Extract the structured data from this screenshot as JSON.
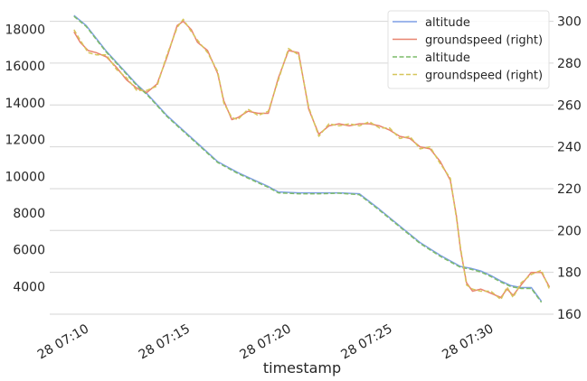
{
  "chart_data": {
    "type": "line",
    "title": "",
    "xlabel": "timestamp",
    "ylabel": "",
    "x_tick_labels": [
      "28 07:10",
      "28 07:15",
      "28 07:20",
      "28 07:25",
      "28 07:30"
    ],
    "x_tick_minutes": [
      10,
      15,
      20,
      25,
      30
    ],
    "xlim_minutes": [
      8.7,
      33.6
    ],
    "y_left": {
      "ticks": [
        4000,
        6000,
        8000,
        10000,
        12000,
        14000,
        16000,
        18000
      ],
      "lim": [
        2500,
        19000
      ]
    },
    "y_right": {
      "ticks": [
        160,
        180,
        200,
        220,
        240,
        260,
        280,
        300
      ],
      "lim": [
        160,
        305
      ]
    },
    "grid": true,
    "legend_position": "top-right",
    "series": [
      {
        "name": "altitude",
        "axis": "left",
        "style": "solid",
        "color": "#7f9fe6",
        "x": [
          9.9,
          10.5,
          11.0,
          11.5,
          12.0,
          12.5,
          13.0,
          13.5,
          14.0,
          14.5,
          15.0,
          15.5,
          16.0,
          16.5,
          17.0,
          17.5,
          18.0,
          18.5,
          19.0,
          19.5,
          20.0,
          21.0,
          22.0,
          23.0,
          24.0,
          25.0,
          26.0,
          27.0,
          28.0,
          29.0,
          29.5,
          30.0,
          30.5,
          31.0,
          31.5,
          32.0,
          32.5,
          33.0
        ],
        "values": [
          18750,
          18200,
          17500,
          16800,
          16200,
          15600,
          15000,
          14500,
          13900,
          13300,
          12800,
          12300,
          11800,
          11300,
          10800,
          10500,
          10200,
          9950,
          9700,
          9450,
          9150,
          9100,
          9100,
          9100,
          9050,
          8200,
          7300,
          6400,
          5700,
          5100,
          5000,
          4850,
          4600,
          4300,
          4050,
          3950,
          3950,
          3200
        ]
      },
      {
        "name": "groundspeed (right)",
        "axis": "right",
        "style": "solid",
        "color": "#e8836f",
        "x": [
          9.9,
          10.2,
          10.6,
          11.0,
          11.5,
          12.0,
          12.5,
          13.0,
          13.5,
          14.0,
          14.5,
          15.0,
          15.3,
          15.7,
          16.0,
          16.5,
          17.0,
          17.3,
          17.7,
          18.0,
          18.5,
          19.0,
          19.5,
          20.0,
          20.5,
          21.0,
          21.5,
          22.0,
          22.5,
          23.0,
          23.5,
          24.0,
          24.5,
          25.0,
          25.5,
          26.0,
          26.5,
          27.0,
          27.5,
          28.0,
          28.5,
          28.8,
          29.0,
          29.3,
          29.6,
          30.0,
          30.5,
          31.0,
          31.3,
          31.6,
          32.0,
          32.5,
          33.0,
          33.4
        ],
        "values": [
          295,
          290,
          286,
          285,
          283,
          278,
          272,
          268,
          266,
          270,
          283,
          298,
          300,
          296,
          290,
          286,
          275,
          262,
          253,
          254,
          257,
          256,
          256,
          273,
          286,
          285,
          258,
          246,
          250,
          251,
          250,
          251,
          251,
          250,
          248,
          245,
          244,
          240,
          239,
          233,
          224,
          207,
          191,
          175,
          171,
          172,
          170,
          168,
          172,
          169,
          174,
          180,
          180,
          173
        ]
      },
      {
        "name": "altitude",
        "axis": "left",
        "style": "dashed",
        "color": "#7cbb68",
        "x": [
          9.9,
          10.5,
          11.0,
          11.5,
          12.0,
          12.5,
          13.0,
          13.5,
          14.0,
          14.5,
          15.0,
          15.5,
          16.0,
          16.5,
          17.0,
          17.5,
          18.0,
          18.5,
          19.0,
          19.5,
          20.0,
          21.0,
          22.0,
          23.0,
          24.0,
          25.0,
          26.0,
          27.0,
          28.0,
          29.0,
          29.5,
          30.0,
          30.5,
          31.0,
          31.5,
          32.0,
          32.5,
          33.0
        ],
        "values": [
          18700,
          18150,
          17450,
          16750,
          16150,
          15550,
          14950,
          14450,
          13850,
          13250,
          12750,
          12250,
          11750,
          11250,
          10750,
          10450,
          10150,
          9900,
          9650,
          9400,
          9100,
          9050,
          9050,
          9080,
          9000,
          8150,
          7250,
          6350,
          5650,
          5050,
          4950,
          4800,
          4550,
          4250,
          4000,
          3900,
          3900,
          3150
        ]
      },
      {
        "name": "groundspeed (right)",
        "axis": "right",
        "style": "dashed",
        "color": "#d6c65a",
        "x": [
          9.9,
          10.2,
          10.6,
          11.0,
          11.5,
          12.0,
          12.5,
          13.0,
          13.5,
          14.0,
          14.5,
          15.0,
          15.3,
          15.7,
          16.0,
          16.5,
          17.0,
          17.3,
          17.7,
          18.0,
          18.5,
          19.0,
          19.5,
          20.0,
          20.5,
          21.0,
          21.5,
          22.0,
          22.5,
          23.0,
          23.5,
          24.0,
          24.5,
          25.0,
          25.5,
          26.0,
          26.5,
          27.0,
          27.5,
          28.0,
          28.5,
          28.8,
          29.0,
          29.3,
          29.6,
          30.0,
          30.5,
          31.0,
          31.3,
          31.6,
          32.0,
          32.5,
          33.0,
          33.4
        ],
        "values": [
          296,
          291,
          285,
          284,
          284,
          277,
          273,
          267,
          267,
          269,
          284,
          297,
          301,
          295,
          291,
          285,
          276,
          261,
          254,
          253,
          258,
          255,
          257,
          272,
          287,
          284,
          259,
          245,
          251,
          250,
          251,
          250,
          252,
          249,
          249,
          244,
          245,
          239,
          240,
          232,
          225,
          206,
          192,
          174,
          172,
          171,
          171,
          167,
          173,
          168,
          175,
          179,
          181,
          172
        ]
      }
    ]
  }
}
